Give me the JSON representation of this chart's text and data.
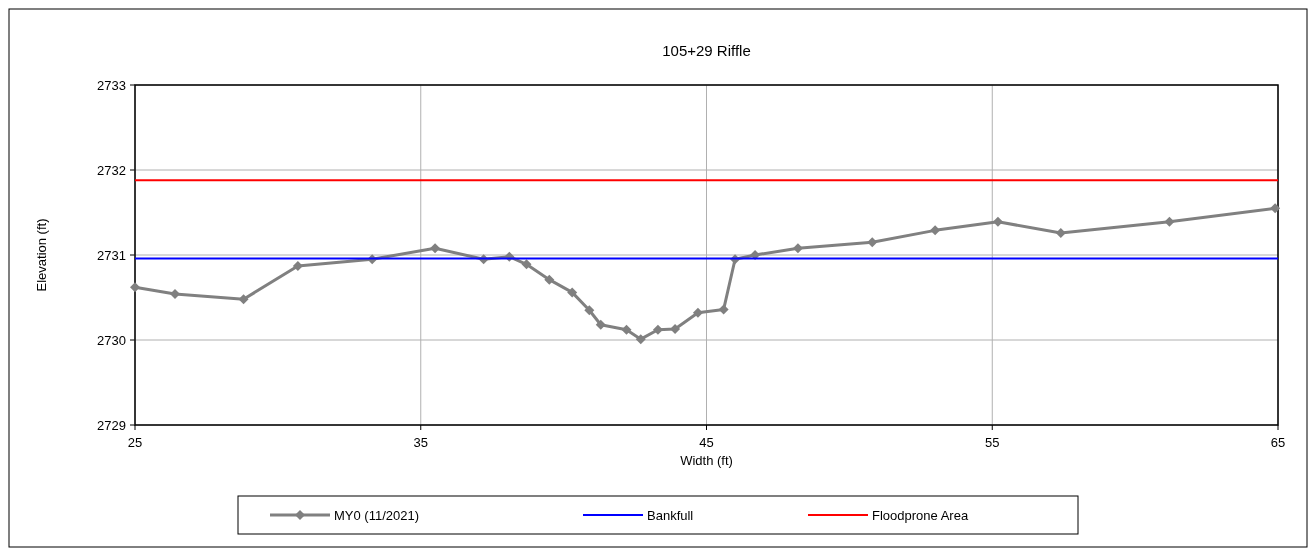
{
  "chart_data": {
    "type": "line",
    "title": "105+29 Riffle",
    "xlabel": "Width (ft)",
    "ylabel": "Elevation (ft)",
    "xlim": [
      25,
      65
    ],
    "xticks": [
      25,
      35,
      45,
      55,
      65
    ],
    "ylim": [
      2729,
      2733
    ],
    "yticks": [
      2729,
      2730,
      2731,
      2732,
      2733
    ],
    "grid": true,
    "legend": "bottom",
    "series": [
      {
        "name": "MY0 (11/2021)",
        "color": "#808080",
        "marker": "diamond",
        "x": [
          25,
          26.4,
          28.8,
          30.7,
          33.3,
          35.5,
          37.2,
          38.1,
          38.7,
          39.5,
          40.3,
          40.9,
          41.3,
          42.2,
          42.7,
          43.3,
          43.9,
          44.7,
          45.6,
          46.0,
          46.7,
          48.2,
          50.8,
          53.0,
          55.2,
          57.4,
          61.2,
          64.9
        ],
        "values": [
          2730.62,
          2730.54,
          2730.48,
          2730.87,
          2730.95,
          2731.08,
          2730.95,
          2730.98,
          2730.89,
          2730.71,
          2730.56,
          2730.35,
          2730.18,
          2730.12,
          2730.01,
          2730.12,
          2730.13,
          2730.32,
          2730.36,
          2730.95,
          2731.0,
          2731.08,
          2731.15,
          2731.29,
          2731.39,
          2731.26,
          2731.39,
          2731.55
        ]
      },
      {
        "name": "Bankfull",
        "color": "#0000ff",
        "marker": "none",
        "x": [
          25,
          65
        ],
        "values": [
          2730.96,
          2730.96
        ]
      },
      {
        "name": "Floodprone Area",
        "color": "#ff0000",
        "marker": "none",
        "x": [
          25,
          65
        ],
        "values": [
          2731.88,
          2731.88
        ]
      }
    ]
  }
}
